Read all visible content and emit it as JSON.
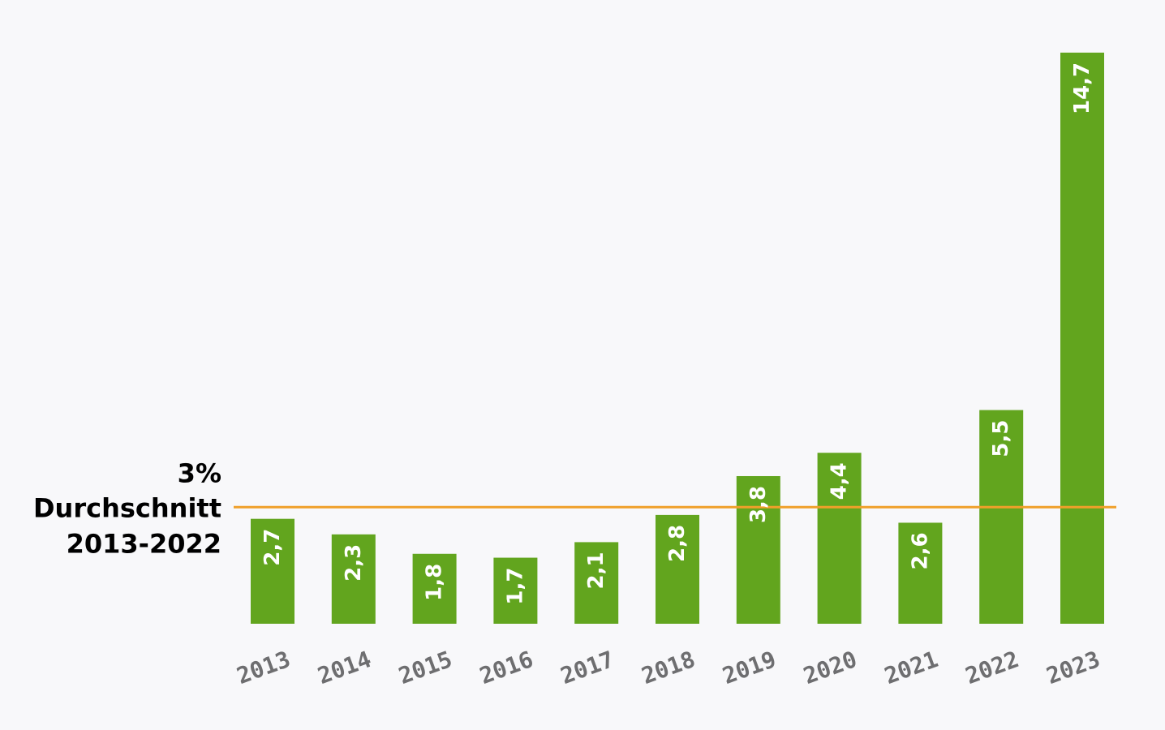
{
  "chart_data": {
    "type": "bar",
    "categories": [
      "2013",
      "2014",
      "2015",
      "2016",
      "2017",
      "2018",
      "2019",
      "2020",
      "2021",
      "2022",
      "2023"
    ],
    "values": [
      2.7,
      2.3,
      1.8,
      1.7,
      2.1,
      2.8,
      3.8,
      4.4,
      2.6,
      5.5,
      14.7
    ],
    "value_labels": [
      "2,7",
      "2,3",
      "1,8",
      "1,7",
      "2,1",
      "2,8",
      "3,8",
      "4,4",
      "2,6",
      "5,5",
      "14,7"
    ],
    "title": "",
    "xlabel": "",
    "ylabel": "",
    "ylim": [
      0,
      15
    ],
    "grid": false,
    "reference_line": {
      "value": 3,
      "label_lines": [
        "3%",
        "Durchschnitt",
        "2013-2022"
      ]
    },
    "colors": {
      "bar": "#62a51e",
      "reference_line": "#f0a02a",
      "value_label": "#ffffff",
      "tick_label": "#6e6e70",
      "background": "#f8f8fa"
    }
  }
}
